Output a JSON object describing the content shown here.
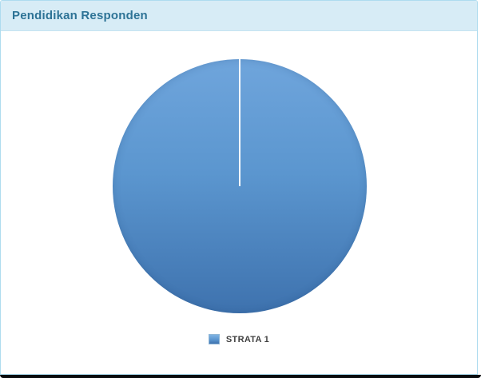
{
  "header": {
    "title": "Pendidikan Responden"
  },
  "legend": {
    "items": [
      {
        "label": "STRATA 1"
      }
    ]
  },
  "colors": {
    "header_bg": "#d7ecf6",
    "header_border": "#c5e4f2",
    "card_border": "#aedcef",
    "title_color": "#2d7396",
    "pie_top": "#6fa5dc",
    "pie_mid": "#5b96cf",
    "pie_bottom": "#3e72ae",
    "swatch_top": "#7fb3e3",
    "swatch_border": "#8fb6d6",
    "legend_text": "#404040",
    "bottom_bar": "#0a0c0e"
  },
  "chart_data": {
    "type": "pie",
    "title": "Pendidikan Responden",
    "labels": [
      "STRATA 1"
    ],
    "values": [
      100
    ],
    "unit": "percent-share",
    "colors": [
      "#4e8ac8"
    ],
    "legend_position": "bottom",
    "start_angle_deg": 0,
    "slice_border_color": "#ffffff"
  }
}
